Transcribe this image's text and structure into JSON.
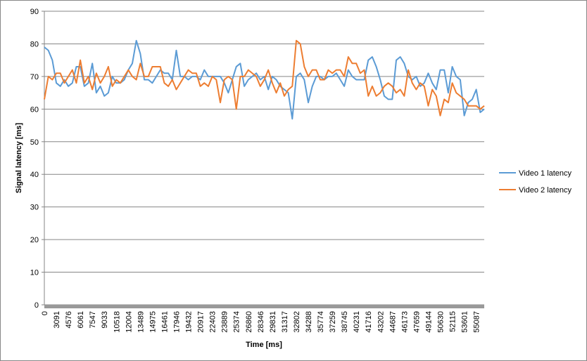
{
  "chart_data": {
    "type": "line",
    "x_label": "Time [ms]",
    "y_label": "Signal latency [ms]",
    "ylim": [
      0,
      90
    ],
    "yticks": [
      0,
      10,
      20,
      30,
      40,
      50,
      60,
      70,
      80,
      90
    ],
    "grid": true,
    "legend": "right",
    "categories": [
      "0",
      null,
      null,
      "3091",
      null,
      null,
      "4576",
      null,
      null,
      "6061",
      null,
      null,
      "7547",
      null,
      null,
      "9033",
      null,
      null,
      "10518",
      null,
      null,
      "12004",
      null,
      null,
      "13489",
      null,
      null,
      "14975",
      null,
      null,
      "16461",
      null,
      null,
      "17946",
      null,
      null,
      "19432",
      null,
      null,
      "20917",
      null,
      null,
      "22403",
      null,
      null,
      "23889",
      null,
      null,
      "25374",
      null,
      null,
      "26860",
      null,
      null,
      "28346",
      null,
      null,
      "29831",
      null,
      null,
      "31317",
      null,
      null,
      "32802",
      null,
      null,
      "34288",
      null,
      null,
      "35774",
      null,
      null,
      "37259",
      null,
      null,
      "38745",
      null,
      null,
      "40231",
      null,
      null,
      "41716",
      null,
      null,
      "43202",
      null,
      null,
      "44687",
      null,
      null,
      "46173",
      null,
      null,
      "47659",
      null,
      null,
      "49144",
      null,
      null,
      "50630",
      null,
      null,
      "52115",
      null,
      null,
      "53601",
      null,
      null,
      "55087",
      null,
      null
    ],
    "series": [
      {
        "name": "Video 1 latency",
        "color": "#5b9bd5",
        "values": [
          79,
          78,
          75,
          68,
          67,
          69,
          67,
          68,
          73,
          73,
          67,
          68,
          74,
          65,
          67,
          64,
          65,
          70,
          68,
          68,
          69,
          72,
          74,
          81,
          77,
          69,
          69,
          68,
          70,
          72,
          71,
          71,
          69,
          78,
          70,
          70,
          69,
          70,
          70,
          69,
          72,
          70,
          70,
          70,
          70,
          68,
          65,
          69,
          73,
          74,
          67,
          69,
          70,
          71,
          69,
          70,
          66,
          70,
          69,
          67,
          66,
          65,
          57,
          70,
          71,
          69,
          62,
          67,
          70,
          70,
          69,
          70,
          70,
          71,
          69,
          67,
          72,
          70,
          69,
          69,
          69,
          75,
          76,
          73,
          69,
          64,
          63,
          63,
          75,
          76,
          74,
          70,
          69,
          70,
          67,
          68,
          71,
          68,
          66,
          72,
          72,
          65,
          73,
          70,
          69,
          58,
          62,
          63,
          66,
          59,
          60
        ]
      },
      {
        "name": "Video 2 latency",
        "color": "#ed7d31",
        "values": [
          63,
          70,
          69,
          71,
          71,
          68,
          70,
          72,
          68,
          75,
          68,
          70,
          66,
          71,
          68,
          70,
          73,
          67,
          69,
          68,
          70,
          72,
          70,
          69,
          74,
          70,
          70,
          73,
          73,
          73,
          68,
          67,
          69,
          66,
          68,
          70,
          72,
          71,
          71,
          67,
          68,
          67,
          70,
          69,
          62,
          69,
          70,
          69,
          60,
          70,
          70,
          72,
          71,
          70,
          67,
          69,
          72,
          68,
          65,
          68,
          64,
          66,
          67,
          81,
          80,
          73,
          70,
          72,
          72,
          69,
          69,
          72,
          71,
          72,
          72,
          70,
          76,
          74,
          74,
          71,
          72,
          64,
          67,
          64,
          65,
          67,
          68,
          67,
          65,
          66,
          64,
          72,
          68,
          66,
          68,
          67,
          61,
          66,
          64,
          58,
          63,
          62,
          68,
          65,
          64,
          63,
          61,
          61,
          61,
          60,
          61
        ]
      }
    ]
  }
}
